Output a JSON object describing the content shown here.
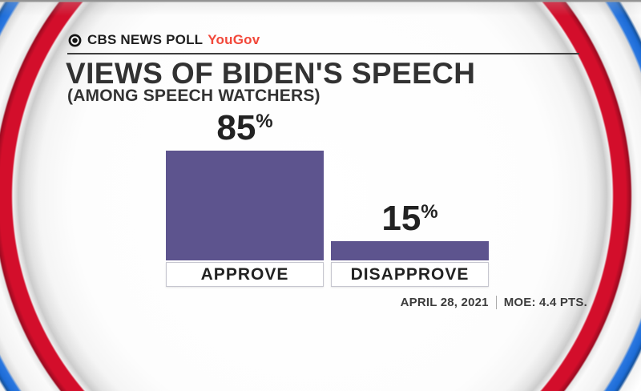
{
  "header": {
    "poll_label": "CBS NEWS POLL",
    "partner_label": "YouGov"
  },
  "chart_data": {
    "type": "bar",
    "title": "VIEWS OF BIDEN'S SPEECH",
    "subtitle": "(AMONG SPEECH WATCHERS)",
    "categories": [
      "APPROVE",
      "DISAPPROVE"
    ],
    "values": [
      85,
      15
    ],
    "value_suffix": "%",
    "ylim": [
      0,
      100
    ],
    "bar_color": "#5d548e",
    "grid": false,
    "legend": "none",
    "value_labels_position": "above-bars"
  },
  "footer": {
    "date": "APRIL 28, 2021",
    "moe": "MOE: 4.4 PTS."
  },
  "colors": {
    "ring_red": "#d30e2b",
    "ring_blue": "#1d6cd6",
    "yougov_red": "#f2483a",
    "bar_purple": "#5d548e",
    "text_dark": "#2e2e2e"
  }
}
